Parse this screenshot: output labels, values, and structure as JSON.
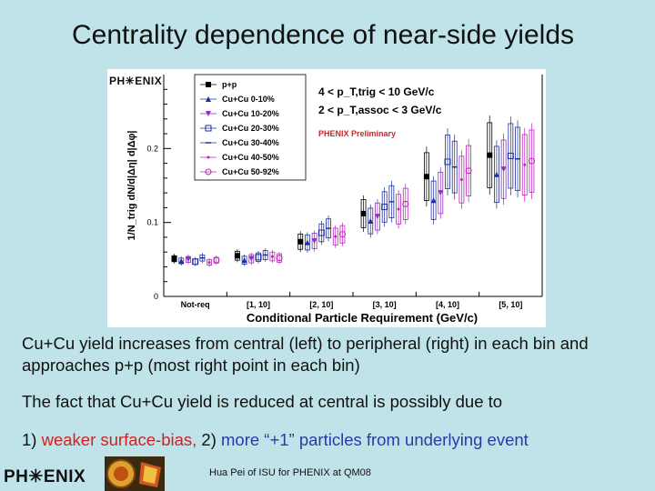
{
  "slide": {
    "title": "Centrality dependence of near-side yields",
    "plot_logo": "PH✳ENIX",
    "paragraph1": "Cu+Cu yield increases from central (left) to peripheral (right) in each bin and approaches p+p (most right point in each bin)",
    "paragraph2": "The fact that Cu+Cu yield is reduced at central is possibly due to",
    "point1_num": "1)",
    "point1_text": "weaker surface-bias,",
    "point2_num": "2)",
    "point2_text": "more “+1” particles from underlying event",
    "footer_logo": "PH✳ENIX",
    "footer_credit": "Hua Pei of ISU for PHENIX at QM08"
  },
  "colors": {
    "background": "#bfe3e8",
    "accent_red": "#d62020",
    "accent_blue": "#2a3aa8",
    "pp": "#000000",
    "cucu_central": "#1f2f9c",
    "cucu_peripheral": "#c020c0"
  },
  "chart_data": {
    "type": "scatter",
    "title": "",
    "xlabel": "Conditional Particle Requirement (GeV/c)",
    "ylabel": "1/N_trig dN/d|Δη| d|Δφ|",
    "categories": [
      "Not-req",
      "[1, 10]",
      "[2, 10]",
      "[3, 10]",
      "[4, 10]",
      "[5, 10]"
    ],
    "ylim": [
      0,
      0.3
    ],
    "yticks": [
      0,
      0.1,
      0.2
    ],
    "annotation_lines": [
      "4 < p_T,trig < 10 GeV/c",
      "2 < p_T,assoc < 3 GeV/c"
    ],
    "annotation_prelim": "PHENIX Preliminary",
    "series": [
      {
        "name": "p+p",
        "marker": "filled-square",
        "color": "#000000",
        "values": [
          0.051,
          0.055,
          0.074,
          0.112,
          0.162,
          0.191
        ]
      },
      {
        "name": "Cu+Cu 0-10%",
        "marker": "triangle-up",
        "color": "#1f2f9c",
        "values": [
          0.048,
          0.049,
          0.073,
          0.102,
          0.13,
          0.165
        ]
      },
      {
        "name": "Cu+Cu 10-20%",
        "marker": "triangle-down",
        "color": "#9030c0",
        "values": [
          0.05,
          0.051,
          0.075,
          0.108,
          0.14,
          0.172
        ]
      },
      {
        "name": "Cu+Cu 20-30%",
        "marker": "open-square",
        "color": "#1f2f9c",
        "values": [
          0.047,
          0.053,
          0.086,
          0.121,
          0.182,
          0.19
        ]
      },
      {
        "name": "Cu+Cu 30-40%",
        "marker": "dash",
        "color": "#1f2f9c",
        "values": [
          0.052,
          0.056,
          0.092,
          0.128,
          0.175,
          0.186
        ]
      },
      {
        "name": "Cu+Cu 40-50%",
        "marker": "dot",
        "color": "#c020c0",
        "values": [
          0.046,
          0.054,
          0.081,
          0.118,
          0.158,
          0.178
        ]
      },
      {
        "name": "Cu+Cu 50-92%",
        "marker": "open-circle",
        "color": "#c020c0",
        "values": [
          0.049,
          0.052,
          0.084,
          0.125,
          0.17,
          0.183
        ]
      }
    ]
  }
}
